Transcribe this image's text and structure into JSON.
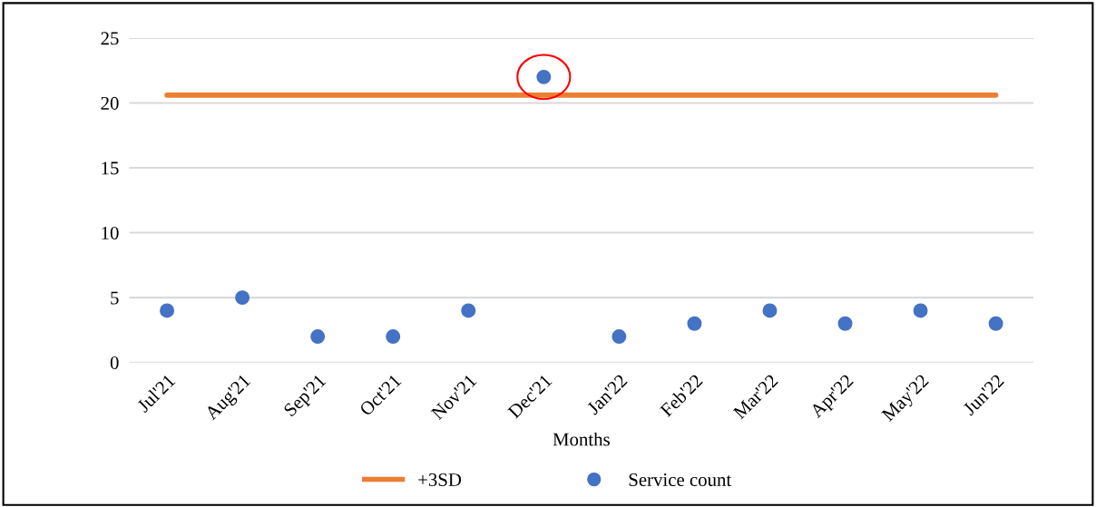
{
  "chart_data": {
    "type": "scatter",
    "xlabel": "Months",
    "categories": [
      "Jul'21",
      "Aug'21",
      "Sep'21",
      "Oct'21",
      "Nov'21",
      "Dec'21",
      "Jan'22",
      "Feb'22",
      "Mar'22",
      "Apr'22",
      "May'22",
      "Jun'22"
    ],
    "series": [
      {
        "name": "+3SD",
        "type": "line",
        "color": "#ed7d31",
        "marker": "none",
        "values": [
          20.6,
          20.6,
          20.6,
          20.6,
          20.6,
          20.6,
          20.6,
          20.6,
          20.6,
          20.6,
          20.6,
          20.6
        ]
      },
      {
        "name": "Service count",
        "color": "#4472c4",
        "marker": "circle",
        "values": [
          4,
          5,
          2,
          2,
          4,
          22,
          2,
          3,
          4,
          3,
          4,
          3
        ]
      }
    ],
    "ylim": [
      0,
      25
    ],
    "yticks": [
      0,
      5,
      10,
      15,
      20,
      25
    ],
    "grid": "y",
    "legend": "bottom"
  }
}
